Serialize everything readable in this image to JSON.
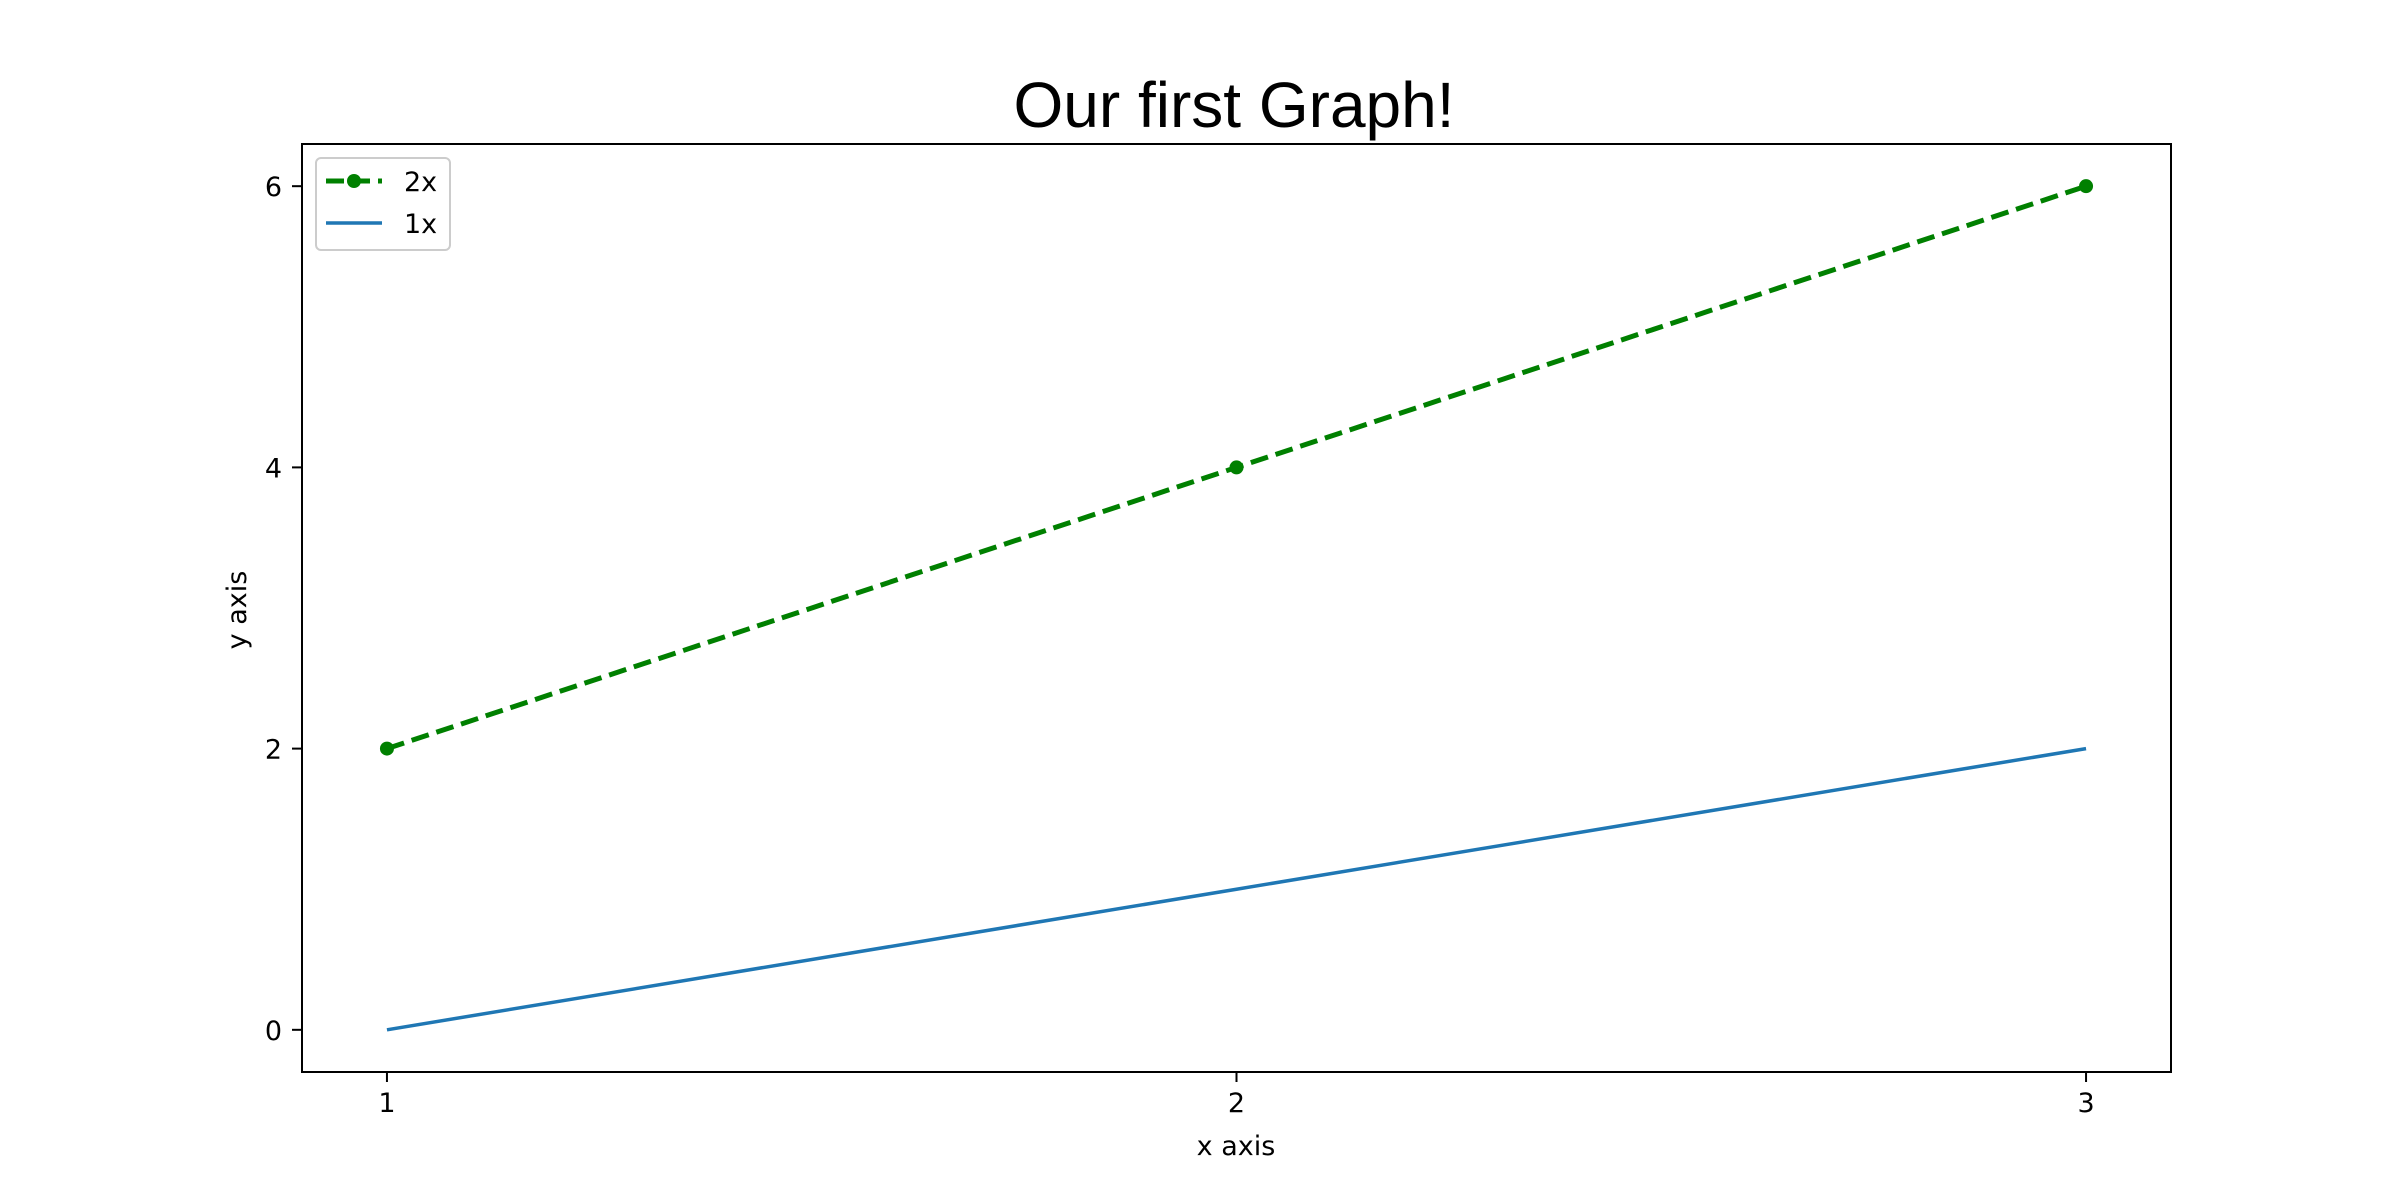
{
  "chart_data": {
    "type": "line",
    "title": "Our first Graph!",
    "xlabel": "x axis",
    "ylabel": "y axis",
    "x_ticks": [
      1,
      2,
      3
    ],
    "y_ticks": [
      0,
      2,
      4,
      6
    ],
    "xlim": [
      0.9,
      3.1
    ],
    "ylim": [
      -0.3,
      6.3
    ],
    "grid": false,
    "legend_position": "upper left",
    "series": [
      {
        "name": "2x",
        "x": [
          1,
          2,
          3
        ],
        "y": [
          2,
          4,
          6
        ],
        "color": "#008000",
        "line_style": "dashed",
        "marker": "circle"
      },
      {
        "name": "1x",
        "x": [
          1,
          2,
          3
        ],
        "y": [
          0,
          1,
          2
        ],
        "color": "#1f77b4",
        "line_style": "solid",
        "marker": "none"
      }
    ]
  }
}
